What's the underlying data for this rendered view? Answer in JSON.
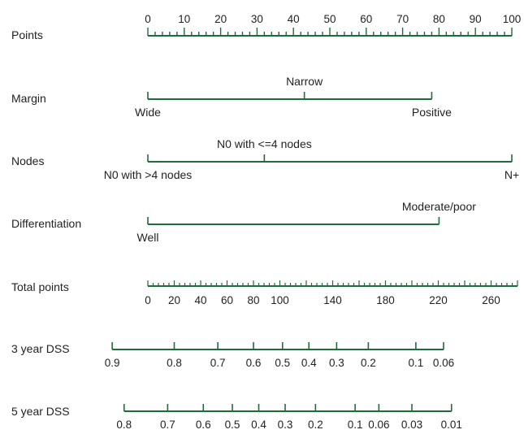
{
  "chart_data": {
    "type": "nomogram",
    "colors": {
      "axis": "#1e6b3c",
      "text": "#222222",
      "background": "#ffffff"
    },
    "points": {
      "label": "Points",
      "range": [
        0,
        100
      ],
      "major_ticks": [
        0,
        10,
        20,
        30,
        40,
        50,
        60,
        70,
        80,
        90,
        100
      ],
      "minor_step": 2
    },
    "predictors": [
      {
        "name": "Margin",
        "levels": [
          {
            "label": "Wide",
            "points": 0
          },
          {
            "label": "Narrow",
            "points": 43
          },
          {
            "label": "Positive",
            "points": 78
          }
        ]
      },
      {
        "name": "Nodes",
        "levels": [
          {
            "label": "N0 with >4 nodes",
            "points": 0
          },
          {
            "label": "N0 with <=4 nodes",
            "points": 32
          },
          {
            "label": "N+",
            "points": 100
          }
        ]
      },
      {
        "name": "Differentiation",
        "levels": [
          {
            "label": "Well",
            "points": 0
          },
          {
            "label": "Moderate/poor",
            "points": 80
          }
        ]
      }
    ],
    "total_points": {
      "label": "Total points",
      "range": [
        0,
        280
      ],
      "tick_labels": [
        0,
        20,
        40,
        60,
        80,
        100,
        140,
        180,
        220,
        260
      ],
      "minor_step": 4
    },
    "outcomes": [
      {
        "label": "3 year DSS",
        "ticks": [
          {
            "value": "0.9",
            "total_points": -27
          },
          {
            "value": "0.8",
            "total_points": 20
          },
          {
            "value": "0.7",
            "total_points": 53
          },
          {
            "value": "0.6",
            "total_points": 80
          },
          {
            "value": "0.5",
            "total_points": 102
          },
          {
            "value": "0.4",
            "total_points": 122
          },
          {
            "value": "0.3",
            "total_points": 143
          },
          {
            "value": "0.2",
            "total_points": 167
          },
          {
            "value": "0.1",
            "total_points": 203
          },
          {
            "value": "0.06",
            "total_points": 224
          }
        ]
      },
      {
        "label": "5 year DSS",
        "ticks": [
          {
            "value": "0.8",
            "total_points": -18
          },
          {
            "value": "0.7",
            "total_points": 15
          },
          {
            "value": "0.6",
            "total_points": 42
          },
          {
            "value": "0.5",
            "total_points": 64
          },
          {
            "value": "0.4",
            "total_points": 84
          },
          {
            "value": "0.3",
            "total_points": 104
          },
          {
            "value": "0.2",
            "total_points": 127
          },
          {
            "value": "0.1",
            "total_points": 157
          },
          {
            "value": "0.06",
            "total_points": 175
          },
          {
            "value": "0.03",
            "total_points": 200
          },
          {
            "value": "0.01",
            "total_points": 230
          }
        ]
      }
    ]
  }
}
